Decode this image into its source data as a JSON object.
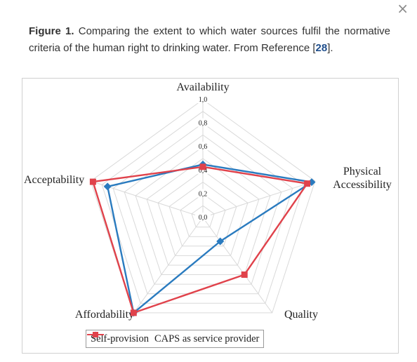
{
  "close_icon": "×",
  "caption": {
    "label": "Figure 1.",
    "text": " Comparing the extent to which water sources fulfil the normative criteria of the human right to drinking water. From Reference [",
    "ref": "28",
    "tail": "]."
  },
  "chart_data": {
    "type": "radar",
    "axes": [
      "Availability",
      "Physical Accessibility",
      "Quality",
      "Affordability",
      "Acceptability"
    ],
    "axis_label_lines": [
      [
        "Availability"
      ],
      [
        "Physical",
        "Accessibility"
      ],
      [
        "Quality"
      ],
      [
        "Affordability"
      ],
      [
        "Acceptability"
      ]
    ],
    "ticks": [
      "0,0",
      "0,2",
      "0,4",
      "0,6",
      "0,8",
      "1,0"
    ],
    "rlim": [
      0,
      1
    ],
    "grid_step": 0.1,
    "series": [
      {
        "name": "Self-provision",
        "values": [
          0.45,
          0.97,
          0.25,
          1.0,
          0.85
        ],
        "color": "#2a7bbf",
        "marker": "diamond"
      },
      {
        "name": "CAPS as service provider",
        "values": [
          0.43,
          0.93,
          0.6,
          1.0,
          0.98
        ],
        "color": "#e0424b",
        "marker": "square"
      }
    ],
    "legend_position": "bottom",
    "grid_color": "#d9d9d9"
  }
}
